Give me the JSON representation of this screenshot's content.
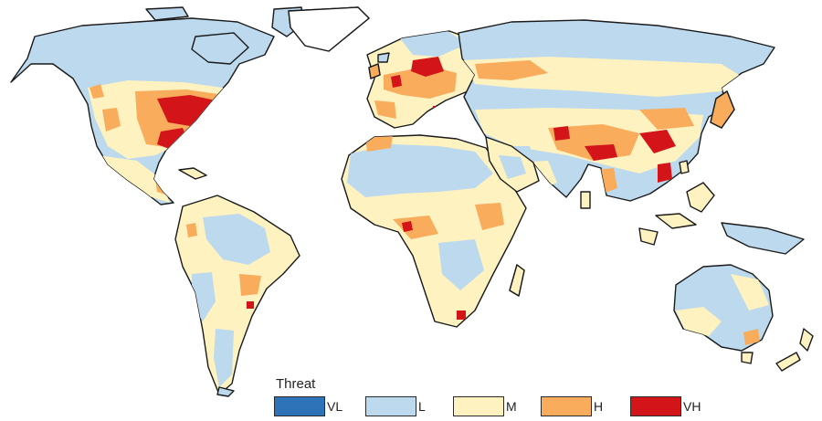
{
  "legend": {
    "title": "Threat",
    "items": [
      {
        "code": "VL",
        "color": "#2e72b8"
      },
      {
        "code": "L",
        "color": "#bcd9ee"
      },
      {
        "code": "M",
        "color": "#fdf2c0"
      },
      {
        "code": "H",
        "color": "#f8ac5c"
      },
      {
        "code": "VH",
        "color": "#d3151a"
      }
    ]
  },
  "colors": {
    "background": "#ffffff",
    "coastline": "#1a1a1a"
  }
}
